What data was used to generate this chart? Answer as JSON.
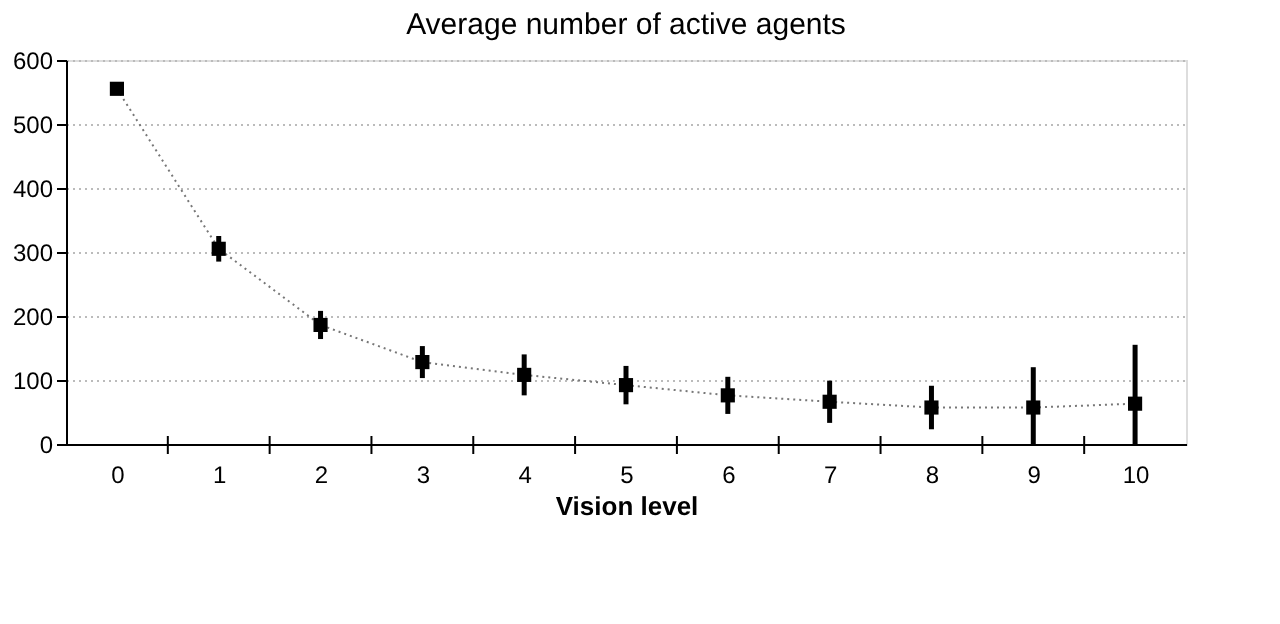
{
  "chart_data": {
    "type": "line",
    "title": "Average number of active agents",
    "xlabel": "Vision level",
    "categories": [
      "0",
      "1",
      "2",
      "3",
      "4",
      "5",
      "6",
      "7",
      "8",
      "9",
      "10"
    ],
    "series": [
      {
        "color": "#000000",
        "values": [
          555,
          305,
          186,
          128,
          108,
          92,
          76,
          66,
          57,
          57,
          63
        ],
        "errors": [
          null,
          20,
          22,
          25,
          32,
          30,
          29,
          33,
          34,
          [
            0,
            120
          ],
          [
            0,
            155
          ]
        ]
      }
    ],
    "ylim": [
      0,
      600
    ],
    "yticks": [
      0,
      100,
      200,
      300,
      400,
      500,
      600
    ],
    "grid": "y",
    "marker": "square",
    "line_style": "dotted",
    "legend": false
  }
}
